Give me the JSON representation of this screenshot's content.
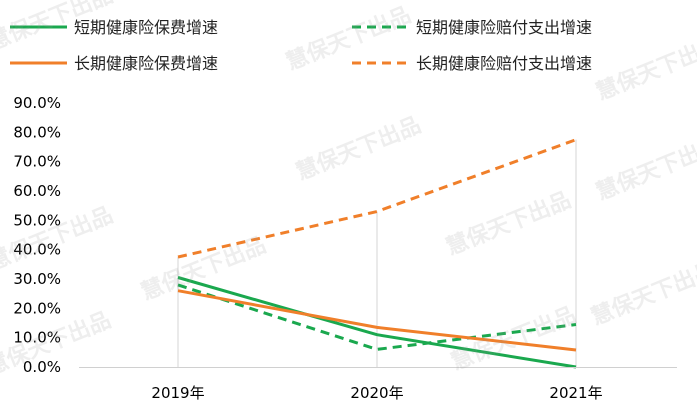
{
  "chart_data": {
    "type": "line",
    "title": "",
    "xlabel": "",
    "ylabel": "",
    "categories": [
      "2019年",
      "2020年",
      "2021年"
    ],
    "ylim": [
      0,
      90
    ],
    "yticks": [
      "0.0%",
      "10.0%",
      "20.0%",
      "30.0%",
      "40.0%",
      "50.0%",
      "60.0%",
      "70.0%",
      "80.0%",
      "90.0%"
    ],
    "grid": false,
    "legend_position": "top",
    "series": [
      {
        "name": "短期健康险保费增速",
        "values": [
          30.5,
          11.0,
          0.0
        ],
        "color": "#1aa84e",
        "style": "solid"
      },
      {
        "name": "短期健康险赔付支出增速",
        "values": [
          28.0,
          6.0,
          14.5
        ],
        "color": "#1aa84e",
        "style": "dashed"
      },
      {
        "name": "长期健康险保费增速",
        "values": [
          26.0,
          13.5,
          5.8
        ],
        "color": "#f07f2a",
        "style": "solid"
      },
      {
        "name": "长期健康险赔付支出增速",
        "values": [
          37.5,
          53.0,
          77.5
        ],
        "color": "#f07f2a",
        "style": "dashed"
      }
    ]
  },
  "watermark": "慧保天下出品"
}
